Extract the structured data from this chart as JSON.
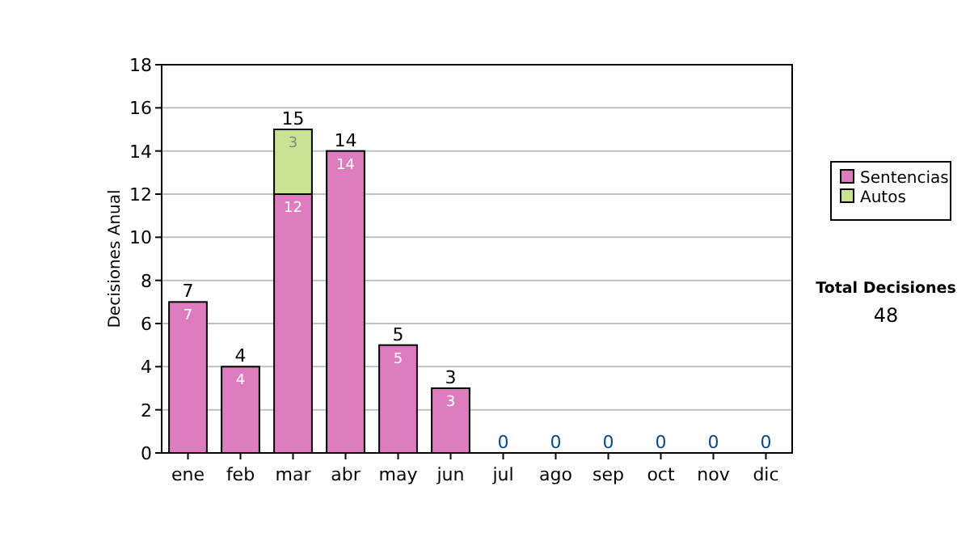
{
  "chart_data": {
    "type": "bar",
    "stacked": true,
    "ylabel": "Decisiones Anual",
    "categories": [
      "ene",
      "feb",
      "mar",
      "abr",
      "may",
      "jun",
      "jul",
      "ago",
      "sep",
      "oct",
      "nov",
      "dic"
    ],
    "series": [
      {
        "name": "Sentencias",
        "color": "#dd7cbf",
        "values": [
          7,
          4,
          12,
          14,
          5,
          3,
          0,
          0,
          0,
          0,
          0,
          0
        ],
        "value_labels": [
          "7",
          "4",
          "12",
          "14",
          "5",
          "3",
          null,
          null,
          null,
          null,
          null,
          null
        ]
      },
      {
        "name": "Autos",
        "color": "#c9e293",
        "values": [
          0,
          0,
          3,
          0,
          0,
          0,
          0,
          0,
          0,
          0,
          0,
          0
        ],
        "value_labels": [
          null,
          null,
          "3",
          null,
          null,
          null,
          null,
          null,
          null,
          null,
          null,
          null
        ]
      }
    ],
    "totals": [
      "7",
      "4",
      "15",
      "14",
      "5",
      "3",
      "0",
      "0",
      "0",
      "0",
      "0",
      "0"
    ],
    "ylim": [
      0,
      18
    ],
    "yticks": [
      0,
      2,
      4,
      6,
      8,
      10,
      12,
      14,
      16,
      18
    ],
    "grid": "y",
    "legend": "right",
    "annotations": [
      "Total Decisiones",
      "48"
    ]
  }
}
